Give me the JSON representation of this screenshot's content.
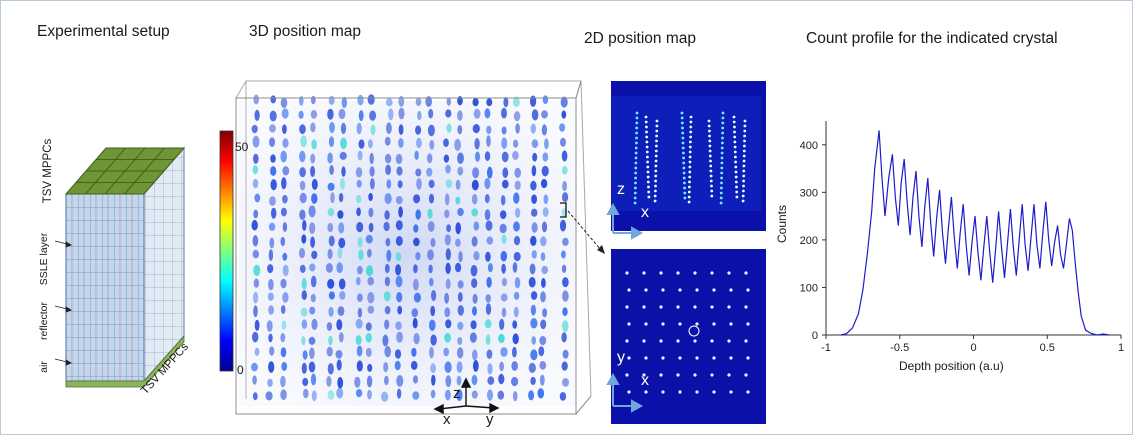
{
  "titles": {
    "setup": "Experimental setup",
    "map3d": "3D position map",
    "map2d": "2D position map",
    "profile": "Count profile for the indicated crystal"
  },
  "setup": {
    "labels": {
      "top_mppc": "TSV MPPCs",
      "bottom_mppc": "TSV MPPCs",
      "sslle_layer": "SSLE layer",
      "reflector": "reflector",
      "air": "air"
    }
  },
  "colorbar": {
    "max_label": "50",
    "min_label": "0"
  },
  "axes3d": {
    "z": "z",
    "x": "x",
    "y": "y"
  },
  "map2d": {
    "top": {
      "vertical_axis": "z",
      "horizontal_axis": "x"
    },
    "bottom": {
      "vertical_axis": "y",
      "horizontal_axis": "x"
    }
  },
  "chart_data": {
    "type": "line",
    "title": "Count profile for the indicated crystal",
    "xlabel": "Depth position (a.u)",
    "ylabel": "Counts",
    "xlim": [
      -1,
      1
    ],
    "ylim": [
      0,
      450
    ],
    "xticks": [
      "-1",
      "-0.5",
      "0",
      "0.5",
      "1"
    ],
    "yticks": [
      "0",
      "100",
      "200",
      "300",
      "400"
    ],
    "line_color": "#1c1ccc",
    "series": [
      {
        "x": [
          -0.9,
          -0.86,
          -0.82,
          -0.78,
          -0.75,
          -0.72,
          -0.69,
          -0.67,
          -0.64,
          -0.62,
          -0.6,
          -0.575,
          -0.55,
          -0.53,
          -0.51,
          -0.49,
          -0.47,
          -0.45,
          -0.43,
          -0.41,
          -0.39,
          -0.37,
          -0.35,
          -0.33,
          -0.31,
          -0.29,
          -0.27,
          -0.25,
          -0.23,
          -0.21,
          -0.19,
          -0.17,
          -0.15,
          -0.13,
          -0.11,
          -0.09,
          -0.07,
          -0.05,
          -0.03,
          -0.01,
          0.01,
          0.03,
          0.05,
          0.07,
          0.09,
          0.11,
          0.13,
          0.15,
          0.17,
          0.19,
          0.21,
          0.23,
          0.25,
          0.27,
          0.29,
          0.31,
          0.33,
          0.35,
          0.37,
          0.39,
          0.41,
          0.43,
          0.45,
          0.47,
          0.49,
          0.51,
          0.53,
          0.55,
          0.57,
          0.59,
          0.61,
          0.63,
          0.65,
          0.67,
          0.69,
          0.71,
          0.73,
          0.76,
          0.8,
          0.84,
          0.88,
          0.92
        ],
        "y": [
          0,
          3,
          15,
          45,
          95,
          170,
          260,
          350,
          430,
          330,
          250,
          330,
          380,
          290,
          230,
          320,
          370,
          280,
          210,
          290,
          345,
          250,
          185,
          270,
          330,
          235,
          165,
          245,
          305,
          215,
          150,
          225,
          290,
          205,
          140,
          215,
          275,
          190,
          125,
          195,
          250,
          175,
          115,
          185,
          250,
          175,
          110,
          180,
          260,
          185,
          120,
          190,
          265,
          185,
          125,
          200,
          275,
          190,
          135,
          205,
          275,
          190,
          140,
          215,
          280,
          200,
          145,
          195,
          230,
          170,
          140,
          190,
          245,
          220,
          150,
          90,
          40,
          10,
          3,
          0,
          2,
          0
        ]
      }
    ]
  }
}
